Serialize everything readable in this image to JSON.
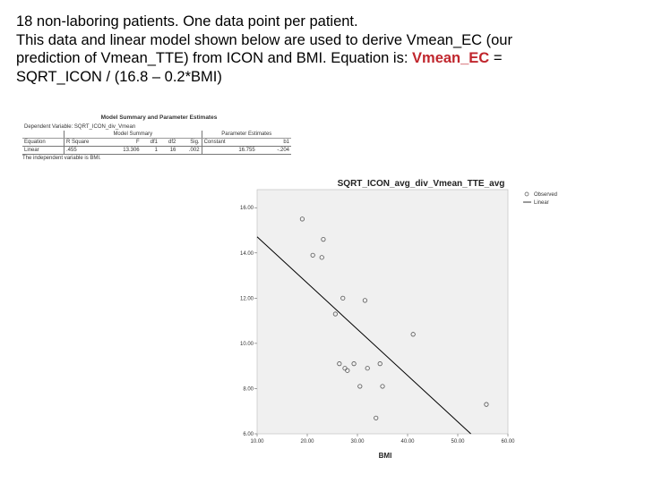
{
  "intro": {
    "line1": "18 non-laboring patients. One data point per patient.",
    "line2a": "This data and linear model shown below are used to derive Vmean_EC (our",
    "line3a": "prediction of Vmean_TTE) from ICON and BMI. Equation is: ",
    "line3hl": "Vmean_EC",
    "line3b": " =",
    "line4": "SQRT_ICON / (16.8 – 0.2*BMI)"
  },
  "summary": {
    "title": "Model Summary and Parameter Estimates",
    "dep_var": "Dependent Variable: SQRT_ICON_div_Vmean",
    "group_model": "Model Summary",
    "group_params": "Parameter Estimates",
    "headers": [
      "Equation",
      "R Square",
      "F",
      "df1",
      "df2",
      "Sig.",
      "Constant",
      "b1"
    ],
    "row": [
      "Linear",
      ".455",
      "13.306",
      "1",
      "16",
      ".002",
      "16.755",
      "-.204"
    ],
    "footnote": "The independent variable is BMI."
  },
  "chart_data": {
    "type": "scatter",
    "title": "SQRT_ICON_avg_div_Vmean_TTE_avg",
    "xlabel": "BMI",
    "ylabel": "",
    "xlim": [
      10,
      60
    ],
    "ylim": [
      6,
      16.8
    ],
    "xticks": [
      10,
      20,
      30,
      40,
      50,
      60
    ],
    "xtick_labels": [
      "10.00",
      "20.00",
      "30.00",
      "40.00",
      "50.00",
      "60.00"
    ],
    "yticks": [
      6,
      8,
      10,
      12,
      14,
      16
    ],
    "ytick_labels": [
      "6.00",
      "8.00",
      "10.00",
      "12.00",
      "14.00",
      "16.00"
    ],
    "series": [
      {
        "name": "Observed",
        "x": [
          19.0,
          23.2,
          21.1,
          22.9,
          27.1,
          31.5,
          25.6,
          41.1,
          26.4,
          29.3,
          27.5,
          32.0,
          28.0,
          34.5,
          30.5,
          35.0,
          55.7,
          33.7
        ],
        "y": [
          15.5,
          14.6,
          13.9,
          13.8,
          12.0,
          11.9,
          11.3,
          10.4,
          9.1,
          9.1,
          8.9,
          8.9,
          8.8,
          9.1,
          8.1,
          8.1,
          7.3,
          6.7
        ]
      },
      {
        "name": "Linear",
        "type": "line",
        "x": [
          10,
          52.6
        ],
        "y": [
          14.714,
          6.0
        ]
      }
    ],
    "legend_position": "top-right"
  },
  "colors": {
    "plot_bg": "#f0f0f0",
    "marker": "#555555",
    "fit_line": "#000000",
    "highlight": "#c0262d"
  }
}
